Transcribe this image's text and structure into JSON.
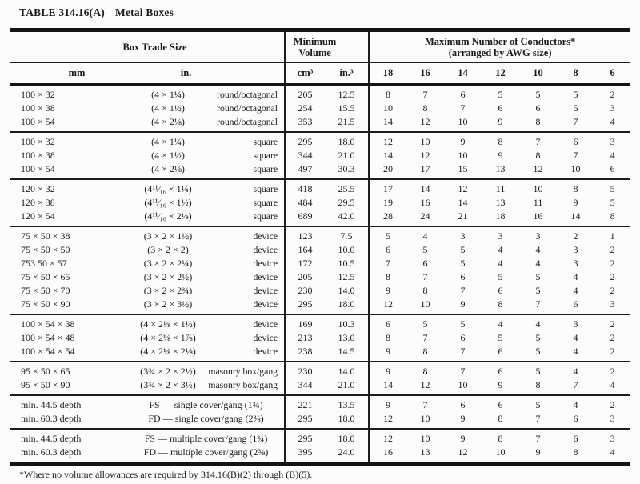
{
  "page": {
    "table_number": "TABLE 314.16(A)",
    "table_title": "Metal Boxes",
    "footnote": "*Where no volume allowances are required by 314.16(B)(2) through (B)(5)."
  },
  "table": {
    "header": {
      "box_trade_size": "Box Trade Size",
      "min_volume_line1": "Minimum",
      "min_volume_line2": "Volume",
      "conductors_line1": "Maximum Number of Conductors*",
      "conductors_line2": "(arranged by AWG size)",
      "mm": "mm",
      "in": "in.",
      "cm3": "cm³",
      "in3": "in.³",
      "awg_sizes": [
        "18",
        "16",
        "14",
        "12",
        "10",
        "8",
        "6"
      ]
    },
    "groups": [
      {
        "rows": [
          {
            "mm": "100 × 32",
            "dim": "(4 × 1¼)",
            "type": "round/octagonal",
            "cm3": "205",
            "in3": "12.5",
            "conductors": [
              8,
              7,
              6,
              5,
              5,
              5,
              2
            ]
          },
          {
            "mm": "100 × 38",
            "dim": "(4 × 1½)",
            "type": "round/octagonal",
            "cm3": "254",
            "in3": "15.5",
            "conductors": [
              10,
              8,
              7,
              6,
              6,
              5,
              3
            ]
          },
          {
            "mm": "100 × 54",
            "dim": "(4 × 2⅛)",
            "type": "round/octagonal",
            "cm3": "353",
            "in3": "21.5",
            "conductors": [
              14,
              12,
              10,
              9,
              8,
              7,
              4
            ]
          }
        ]
      },
      {
        "rows": [
          {
            "mm": "100 × 32",
            "dim": "(4 × 1¼)",
            "type": "square",
            "cm3": "295",
            "in3": "18.0",
            "conductors": [
              12,
              10,
              9,
              8,
              7,
              6,
              3
            ]
          },
          {
            "mm": "100 × 38",
            "dim": "(4 × 1½)",
            "type": "square",
            "cm3": "344",
            "in3": "21.0",
            "conductors": [
              14,
              12,
              10,
              9,
              8,
              7,
              4
            ]
          },
          {
            "mm": "100 × 54",
            "dim": "(4 × 2⅛)",
            "type": "square",
            "cm3": "497",
            "in3": "30.3",
            "conductors": [
              20,
              17,
              15,
              13,
              12,
              10,
              6
            ]
          }
        ]
      },
      {
        "rows": [
          {
            "mm": "120 × 32",
            "dim": "(4¹¹⁄₁₆ × 1¼)",
            "type": "square",
            "cm3": "418",
            "in3": "25.5",
            "conductors": [
              17,
              14,
              12,
              11,
              10,
              8,
              5
            ]
          },
          {
            "mm": "120 × 38",
            "dim": "(4¹¹⁄₁₆ × 1½)",
            "type": "square",
            "cm3": "484",
            "in3": "29.5",
            "conductors": [
              19,
              16,
              14,
              13,
              11,
              9,
              5
            ]
          },
          {
            "mm": "120 × 54",
            "dim": "(4¹¹⁄₁₆ × 2⅛)",
            "type": "square",
            "cm3": "689",
            "in3": "42.0",
            "conductors": [
              28,
              24,
              21,
              18,
              16,
              14,
              8
            ]
          }
        ]
      },
      {
        "rows": [
          {
            "mm": "75 × 50 × 38",
            "dim": "(3 × 2 × 1½)",
            "type": "device",
            "cm3": "123",
            "in3": "7.5",
            "conductors": [
              5,
              4,
              3,
              3,
              3,
              2,
              1
            ]
          },
          {
            "mm": "75 × 50 × 50",
            "dim": "(3 × 2 × 2)",
            "type": "device",
            "cm3": "164",
            "in3": "10.0",
            "conductors": [
              6,
              5,
              5,
              4,
              4,
              3,
              2
            ]
          },
          {
            "mm": "753 50 × 57",
            "dim": "(3 × 2 × 2¼)",
            "type": "device",
            "cm3": "172",
            "in3": "10.5",
            "conductors": [
              7,
              6,
              5,
              4,
              4,
              3,
              2
            ]
          },
          {
            "mm": "75 × 50 × 65",
            "dim": "(3 × 2 × 2½)",
            "type": "device",
            "cm3": "205",
            "in3": "12.5",
            "conductors": [
              8,
              7,
              6,
              5,
              5,
              4,
              2
            ]
          },
          {
            "mm": "75 × 50 × 70",
            "dim": "(3 × 2 × 2¾)",
            "type": "device",
            "cm3": "230",
            "in3": "14.0",
            "conductors": [
              9,
              8,
              7,
              6,
              5,
              4,
              2
            ]
          },
          {
            "mm": "75 × 50 × 90",
            "dim": "(3 × 2 × 3½)",
            "type": "device",
            "cm3": "295",
            "in3": "18.0",
            "conductors": [
              12,
              10,
              9,
              8,
              7,
              6,
              3
            ]
          }
        ]
      },
      {
        "rows": [
          {
            "mm": "100 × 54 × 38",
            "dim": "(4 × 2⅛ × 1½)",
            "type": "device",
            "cm3": "169",
            "in3": "10.3",
            "conductors": [
              6,
              5,
              5,
              4,
              4,
              3,
              2
            ]
          },
          {
            "mm": "100 × 54 × 48",
            "dim": "(4 × 2⅛ × 1⅞)",
            "type": "device",
            "cm3": "213",
            "in3": "13.0",
            "conductors": [
              8,
              7,
              6,
              5,
              5,
              4,
              2
            ]
          },
          {
            "mm": "100 × 54 × 54",
            "dim": "(4 × 2⅛ × 2⅛)",
            "type": "device",
            "cm3": "238",
            "in3": "14.5",
            "conductors": [
              9,
              8,
              7,
              6,
              5,
              4,
              2
            ]
          }
        ]
      },
      {
        "rows": [
          {
            "mm": "95 × 50 × 65",
            "dim": "(3¾ × 2 × 2½)",
            "type": "masonry box/gang",
            "cm3": "230",
            "in3": "14.0",
            "conductors": [
              9,
              8,
              7,
              6,
              5,
              4,
              2
            ]
          },
          {
            "mm": "95 × 50 × 90",
            "dim": "(3¾ × 2 × 3½)",
            "type": "masonry box/gang",
            "cm3": "344",
            "in3": "21.0",
            "conductors": [
              14,
              12,
              10,
              9,
              8,
              7,
              4
            ]
          }
        ]
      },
      {
        "rows": [
          {
            "mm": "min. 44.5 depth",
            "dim": "FS — single cover/gang (1¾)",
            "type": null,
            "cm3": "221",
            "in3": "13.5",
            "conductors": [
              9,
              7,
              6,
              6,
              5,
              4,
              2
            ]
          },
          {
            "mm": "min. 60.3 depth",
            "dim": "FD — single cover/gang (2⅜)",
            "type": null,
            "cm3": "295",
            "in3": "18.0",
            "conductors": [
              12,
              10,
              9,
              8,
              7,
              6,
              3
            ]
          }
        ]
      },
      {
        "rows": [
          {
            "mm": "min. 44.5 depth",
            "dim": "FS — multiple cover/gang (1¾)",
            "type": null,
            "cm3": "295",
            "in3": "18.0",
            "conductors": [
              12,
              10,
              9,
              8,
              7,
              6,
              3
            ]
          },
          {
            "mm": "min. 60.3 depth",
            "dim": "FD — multiple cover/gang (2⅜)",
            "type": null,
            "cm3": "395",
            "in3": "24.0",
            "conductors": [
              16,
              13,
              12,
              10,
              9,
              8,
              4
            ]
          }
        ]
      }
    ]
  }
}
